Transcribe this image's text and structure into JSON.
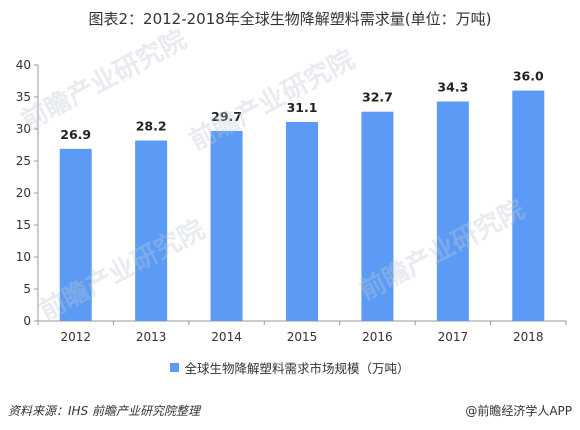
{
  "title": "图表2：2012-2018年全球生物降解塑料需求量(单位：万吨)",
  "chart_data": {
    "type": "bar",
    "categories": [
      "2012",
      "2013",
      "2014",
      "2015",
      "2016",
      "2017",
      "2018"
    ],
    "series": [
      {
        "name": "全球生物降解塑料需求市场规模（万吨）",
        "values": [
          26.9,
          28.2,
          29.7,
          31.1,
          32.7,
          34.3,
          36.0
        ],
        "labels": [
          "26.9",
          "28.2",
          "29.7",
          "31.1",
          "32.7",
          "34.3",
          "36.0"
        ]
      }
    ],
    "ylim": [
      0,
      40
    ],
    "yticks": [
      0,
      5,
      10,
      15,
      20,
      25,
      30,
      35,
      40
    ],
    "grid": false,
    "legend_position": "bottom",
    "bar_color": "#5b9bf5"
  },
  "source": "资料来源：IHS 前瞻产业研究院整理",
  "brand": "@前瞻经济学人APP",
  "watermark": "前瞻产业研究院"
}
